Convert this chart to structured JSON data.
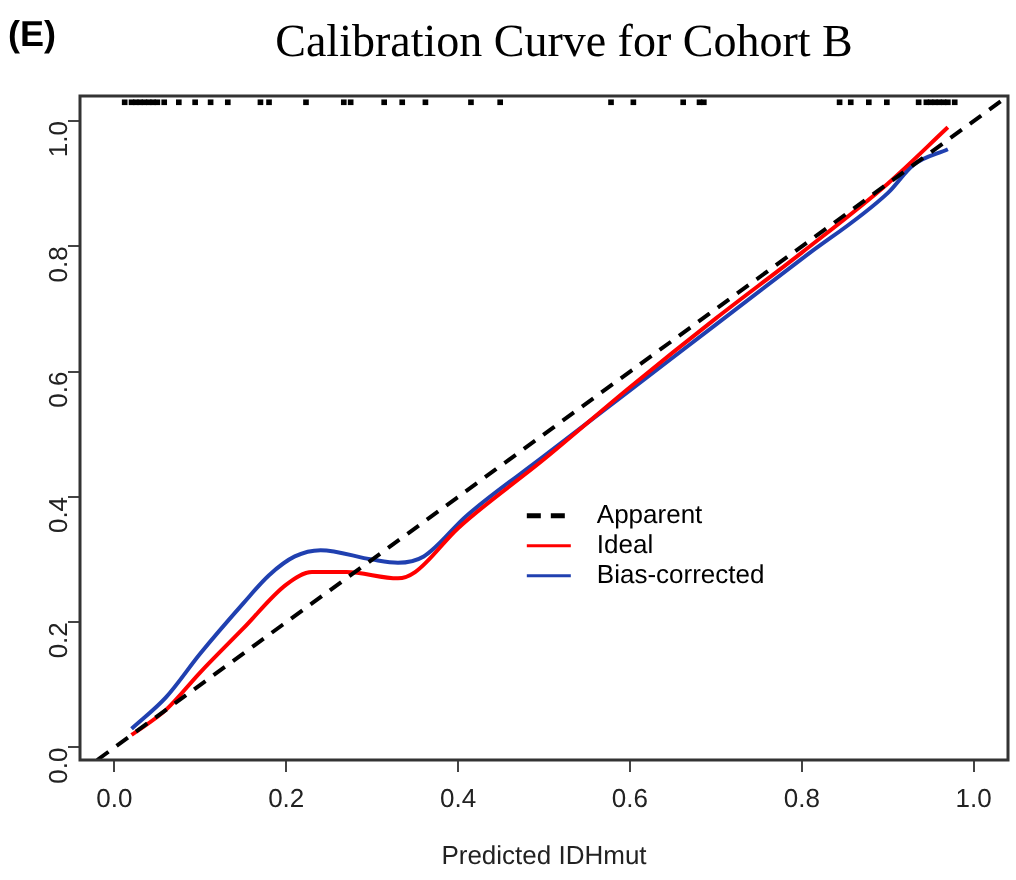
{
  "chart_data": {
    "type": "line",
    "title": "Calibration Curve for Cohort B",
    "xlabel": "Predicted IDHmut",
    "annotations": [
      "(E)"
    ],
    "xlim": [
      -0.04,
      1.04
    ],
    "ylim": [
      -0.02,
      1.04
    ],
    "xticks": [
      {
        "value": 0,
        "label": "0.0"
      },
      {
        "value": 0.2,
        "label": "0.2"
      },
      {
        "value": 0.4,
        "label": "0.4"
      },
      {
        "value": 0.6,
        "label": "0.6"
      },
      {
        "value": 0.8,
        "label": "0.8"
      },
      {
        "value": 1,
        "label": "1.0"
      }
    ],
    "yticks": [
      {
        "value": 0,
        "label": "0.0"
      },
      0.2,
      0.4,
      0.6,
      0.8,
      {
        "value": 1,
        "label": "1.0"
      }
    ],
    "grid": false,
    "legend": "center",
    "marker": "none",
    "series": [
      {
        "name": "Apparent",
        "color": "#000000",
        "line_style": "dashed",
        "x": [
          -0.02,
          1.04
        ],
        "values": [
          -0.02,
          1.04
        ]
      },
      {
        "name": "Ideal",
        "color": "#ff0000",
        "line_style": "solid",
        "x": [
          0.02,
          0.06,
          0.1,
          0.15,
          0.2,
          0.23,
          0.27,
          0.33,
          0.35,
          0.4,
          0.5,
          0.6,
          0.7,
          0.8,
          0.9,
          0.97
        ],
        "values": [
          0.02,
          0.06,
          0.12,
          0.19,
          0.26,
          0.28,
          0.28,
          0.27,
          0.28,
          0.35,
          0.46,
          0.575,
          0.685,
          0.79,
          0.9,
          0.99
        ]
      },
      {
        "name": "Bias-corrected",
        "color": "#2040b0",
        "line_style": "solid",
        "x": [
          0.02,
          0.06,
          0.1,
          0.15,
          0.18,
          0.21,
          0.24,
          0.3,
          0.33,
          0.36,
          0.41,
          0.5,
          0.6,
          0.7,
          0.8,
          0.9,
          0.93,
          0.97
        ],
        "values": [
          0.03,
          0.08,
          0.15,
          0.23,
          0.275,
          0.305,
          0.315,
          0.3,
          0.295,
          0.305,
          0.37,
          0.465,
          0.57,
          0.675,
          0.78,
          0.885,
          0.93,
          0.955
        ]
      },
      {
        "type": "scatter",
        "marker": "square",
        "color": "#000000",
        "x": [
          0.012,
          0.02,
          0.025,
          0.03,
          0.035,
          0.04,
          0.045,
          0.05,
          0.058,
          0.075,
          0.094,
          0.112,
          0.132,
          0.17,
          0.18,
          0.223,
          0.267,
          0.275,
          0.314,
          0.335,
          0.362,
          0.415,
          0.449,
          0.578,
          0.604,
          0.662,
          0.681,
          0.686,
          0.844,
          0.857,
          0.878,
          0.899,
          0.936,
          0.945,
          0.95,
          0.955,
          0.96,
          0.965,
          0.97,
          0.978
        ],
        "values": [
          1.03,
          1.03,
          1.03,
          1.03,
          1.03,
          1.03,
          1.03,
          1.03,
          1.03,
          1.03,
          1.03,
          1.03,
          1.03,
          1.03,
          1.03,
          1.03,
          1.03,
          1.03,
          1.03,
          1.03,
          1.03,
          1.03,
          1.03,
          1.03,
          1.03,
          1.03,
          1.03,
          1.03,
          1.03,
          1.03,
          1.03,
          1.03,
          1.03,
          1.03,
          1.03,
          1.03,
          1.03,
          1.03,
          1.03,
          1.03
        ]
      }
    ]
  }
}
